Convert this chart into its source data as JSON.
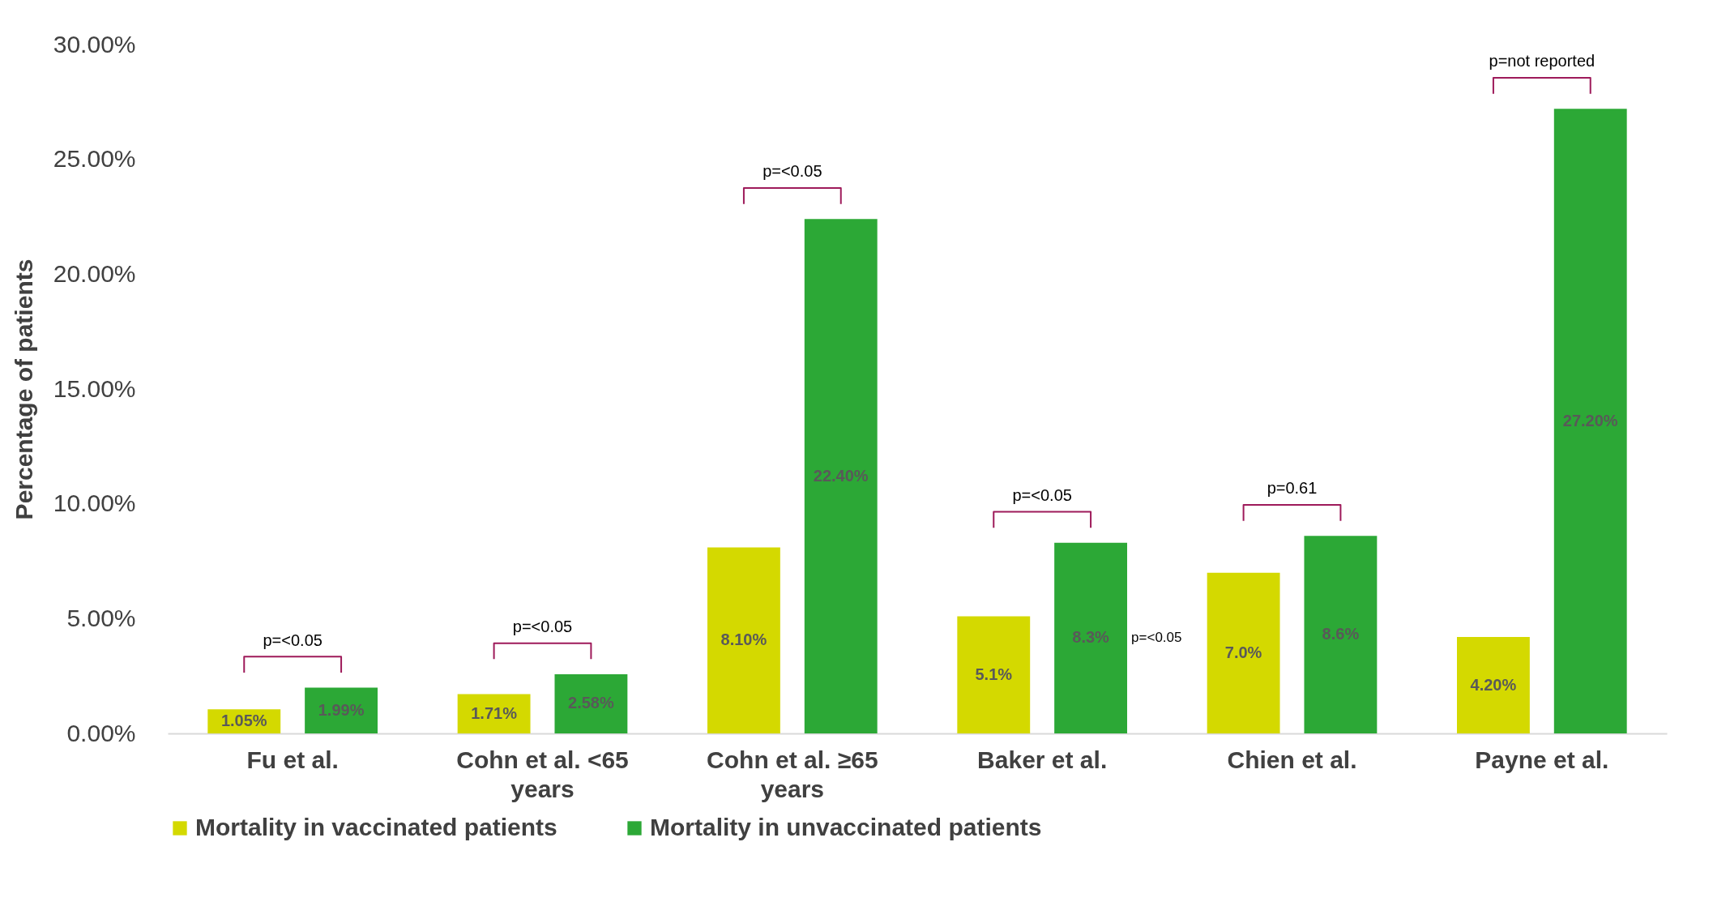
{
  "chart_data": {
    "type": "bar",
    "ylabel": "Percentage of patients",
    "categories": [
      "Fu et al.",
      "Cohn et al. <65 years",
      "Cohn et al. ≥65 years",
      "Baker et al.",
      "Chien et al.",
      "Payne et al."
    ],
    "series": [
      {
        "name": "Mortality in vaccinated patients",
        "color": "#d4d900",
        "values": [
          1.05,
          1.71,
          8.1,
          5.1,
          7.0,
          4.2
        ],
        "value_labels": [
          "1.05%",
          "1.71%",
          "8.10%",
          "5.1%",
          "7.0%",
          "4.20%"
        ]
      },
      {
        "name": "Mortality in unvaccinated patients",
        "color": "#2ca836",
        "values": [
          1.99,
          2.58,
          22.4,
          8.3,
          8.6,
          27.2
        ],
        "value_labels": [
          "1.99%",
          "2.58%",
          "22.40%",
          "8.3%",
          "8.6%",
          "27.20%"
        ]
      }
    ],
    "ylim": [
      0,
      30
    ],
    "yticks": [
      {
        "value": 0,
        "label": "0.00%"
      },
      {
        "value": 5,
        "label": "5.00%"
      },
      {
        "value": 10,
        "label": "10.00%"
      },
      {
        "value": 15,
        "label": "15.00%"
      },
      {
        "value": 20,
        "label": "20.00%"
      },
      {
        "value": 25,
        "label": "25.00%"
      },
      {
        "value": 30,
        "label": "30.00%"
      }
    ],
    "annotations": [
      "p=<0.05",
      "p=<0.05",
      "p=<0.05",
      "p=<0.05",
      "p=0.61",
      "p=not reported",
      "p=<0.05"
    ],
    "legend": "bottom",
    "grid": false
  }
}
